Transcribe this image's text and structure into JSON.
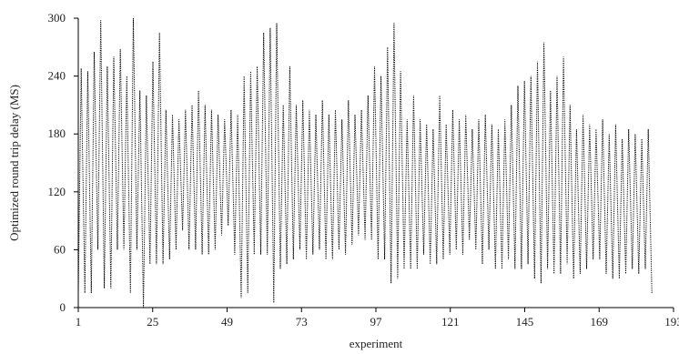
{
  "chart_data": {
    "type": "line",
    "title": "",
    "xlabel": "experiment",
    "ylabel": "Optimized round trip delay (MS)",
    "xlim": [
      1,
      193
    ],
    "ylim": [
      0,
      300
    ],
    "x_ticks": [
      1,
      25,
      49,
      73,
      97,
      121,
      145,
      169,
      193
    ],
    "y_ticks": [
      0,
      60,
      120,
      180,
      240,
      300
    ],
    "grid": false,
    "legend": "none",
    "line_style": "dotted",
    "color": "#000000",
    "peaks": [
      248,
      245,
      265,
      298,
      250,
      260,
      268,
      240,
      300,
      225,
      220,
      255,
      285,
      205,
      200,
      195,
      205,
      210,
      225,
      210,
      205,
      200,
      195,
      205,
      200,
      240,
      245,
      250,
      285,
      290,
      295,
      210,
      250,
      210,
      215,
      205,
      200,
      215,
      200,
      205,
      195,
      215,
      200,
      205,
      220,
      250,
      240,
      270,
      295,
      245,
      195,
      220,
      195,
      190,
      185,
      220,
      190,
      205,
      195,
      200,
      185,
      195,
      200,
      190,
      185,
      195,
      210,
      230,
      235,
      240,
      255,
      275,
      225,
      240,
      260,
      210,
      185,
      200,
      190,
      185,
      195,
      180,
      190,
      175,
      185,
      180,
      175,
      185
    ],
    "troughs": [
      15,
      15,
      15,
      60,
      20,
      20,
      60,
      60,
      15,
      60,
      0,
      45,
      45,
      45,
      50,
      60,
      80,
      60,
      60,
      55,
      55,
      60,
      75,
      85,
      55,
      10,
      15,
      55,
      55,
      55,
      5,
      40,
      45,
      50,
      60,
      50,
      55,
      60,
      50,
      50,
      60,
      55,
      65,
      75,
      70,
      70,
      50,
      50,
      25,
      30,
      40,
      40,
      40,
      55,
      45,
      45,
      50,
      55,
      60,
      55,
      70,
      60,
      45,
      60,
      40,
      40,
      50,
      40,
      40,
      45,
      30,
      25,
      40,
      35,
      35,
      45,
      30,
      35,
      40,
      50,
      50,
      35,
      30,
      30,
      35,
      40,
      35,
      40
    ]
  }
}
